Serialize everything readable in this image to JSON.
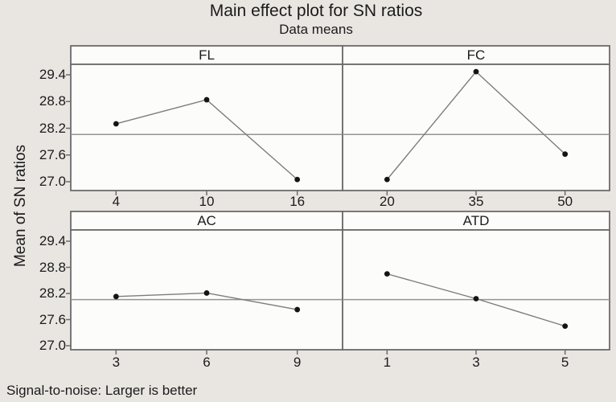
{
  "page": {
    "title": "Main effect plot for SN ratios",
    "subtitle": "Data means",
    "footnote": "Signal-to-noise: Larger is better"
  },
  "chart_data": {
    "type": "line",
    "chart_kind": "main-effects-trellis-2x2",
    "title": "Main effect plot for SN ratios",
    "subtitle": "Data means",
    "ylabel": "Mean of SN ratios",
    "footnote": "Signal-to-noise: Larger is better",
    "grid": false,
    "legend": "none",
    "ylim": [
      26.8,
      29.66
    ],
    "y_ticks": [
      29.4,
      28.8,
      28.2,
      27.6,
      27.0
    ],
    "y_tick_labels": [
      "29.4",
      "28.8",
      "28.2",
      "27.6",
      "27.0"
    ],
    "reference_line_mean": 28.06,
    "panels": [
      {
        "title": "FL",
        "categories": [
          "4",
          "10",
          "16"
        ],
        "values": [
          28.3,
          28.84,
          27.05
        ]
      },
      {
        "title": "FC",
        "categories": [
          "20",
          "35",
          "50"
        ],
        "values": [
          27.05,
          29.47,
          27.62
        ]
      },
      {
        "title": "AC",
        "categories": [
          "3",
          "6",
          "9"
        ],
        "values": [
          28.13,
          28.21,
          27.83
        ]
      },
      {
        "title": "ATD",
        "categories": [
          "1",
          "3",
          "5"
        ],
        "values": [
          28.65,
          28.08,
          27.45
        ]
      }
    ],
    "colors": {
      "background": "#e9e6e2",
      "panel_background": "#fcfcfa",
      "panel_border": "#6b6b6b",
      "data_line": "#7d7d7d",
      "data_point": "#141414",
      "reference_line": "#949494",
      "text": "#1b1b1b"
    }
  }
}
